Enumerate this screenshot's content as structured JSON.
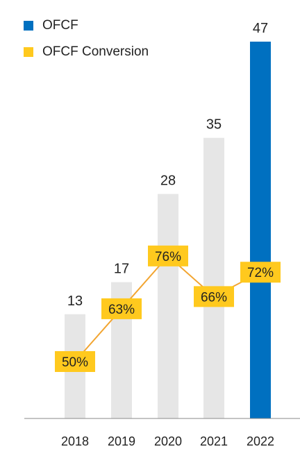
{
  "colors": {
    "ofcf_bar": "#e6e6e6",
    "ofcf_bar_highlight": "#0070c0",
    "ofcf_legend": "#0070c0",
    "conversion": "#ffc91e",
    "conversion_line": "#f2a531",
    "axis": "#888888",
    "text": "#222222"
  },
  "legend": {
    "items": [
      {
        "label": "OFCF",
        "color_key": "ofcf_legend",
        "icon": "square-swatch-icon"
      },
      {
        "label": "OFCF Conversion",
        "color_key": "conversion",
        "icon": "square-swatch-icon"
      }
    ]
  },
  "chart_data": {
    "type": "bar",
    "categories": [
      "2018",
      "2019",
      "2020",
      "2021",
      "2022"
    ],
    "ylim": [
      0,
      50
    ],
    "y2lim": [
      40,
      95
    ],
    "series": [
      {
        "name": "OFCF",
        "type": "bar",
        "values": [
          13,
          17,
          28,
          35,
          47
        ],
        "value_labels": [
          "13",
          "17",
          "28",
          "35",
          "47"
        ],
        "highlight_index": 4
      },
      {
        "name": "OFCF Conversion",
        "type": "line",
        "axis": "secondary",
        "values": [
          50,
          63,
          76,
          66,
          72
        ],
        "value_labels": [
          "50%",
          "63%",
          "76%",
          "66%",
          "72%"
        ]
      }
    ],
    "grid": false,
    "legend_position": "top-left"
  }
}
